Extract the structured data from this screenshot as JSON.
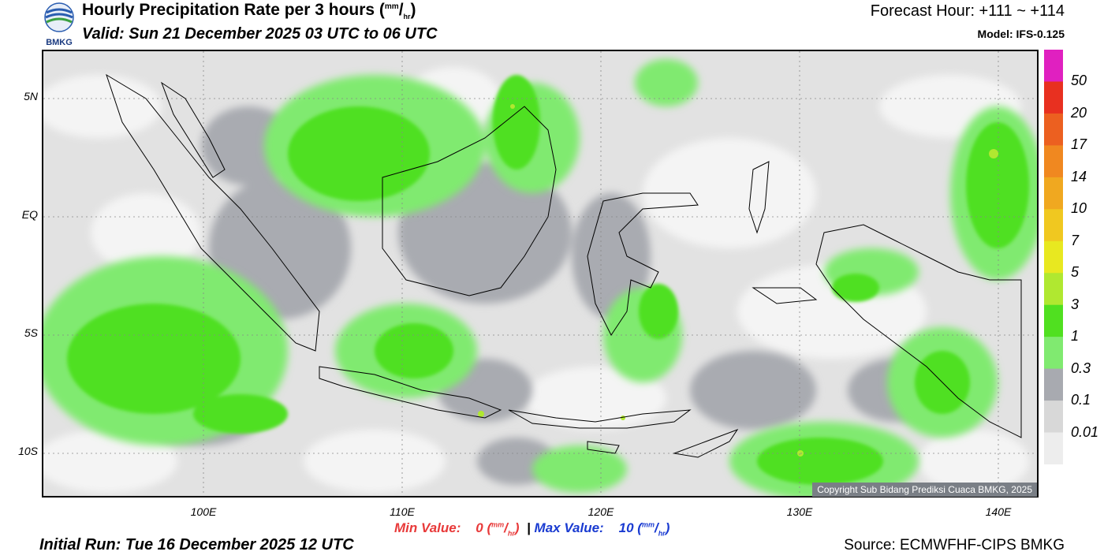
{
  "header": {
    "title_main": "Hourly Precipitation Rate per 3 hours (",
    "title_unit_num": "mm",
    "title_unit_den": "hr",
    "title_close": ")",
    "valid": "Valid: Sun 21 December 2025 03 UTC to 06 UTC",
    "forecast_hour": "Forecast Hour: +111 ~ +114",
    "model": "Model: IFS-0.125",
    "logo_text": "BMKG"
  },
  "map": {
    "lat_labels": [
      "5N",
      "EQ",
      "5S",
      "10S"
    ],
    "lon_labels": [
      "100E",
      "110E",
      "120E",
      "130E",
      "140E"
    ],
    "copyright": "Copyright Sub Bidang Prediksi Cuaca BMKG, 2025"
  },
  "colorbar": {
    "labels": [
      "50",
      "20",
      "17",
      "14",
      "10",
      "7",
      "5",
      "3",
      "1",
      "0.3",
      "0.1",
      "0.01"
    ],
    "colors": [
      "#e020c0",
      "#e83020",
      "#ec6020",
      "#f08820",
      "#f0a820",
      "#f0c820",
      "#e8e820",
      "#b0e830",
      "#50e020",
      "#80ea70",
      "#a8aab0",
      "#d8d8d8",
      "#ededed"
    ]
  },
  "footer": {
    "min_label": "Min Value:",
    "min_value": "0",
    "max_label": "Max Value:",
    "max_value": "10",
    "unit_num": "mm",
    "unit_den": "hr",
    "separator": "|",
    "initial_run": "Initial Run: Tue 16 December 2025 12 UTC",
    "source": "Source: ECMWFHF-CIPS BMKG"
  }
}
